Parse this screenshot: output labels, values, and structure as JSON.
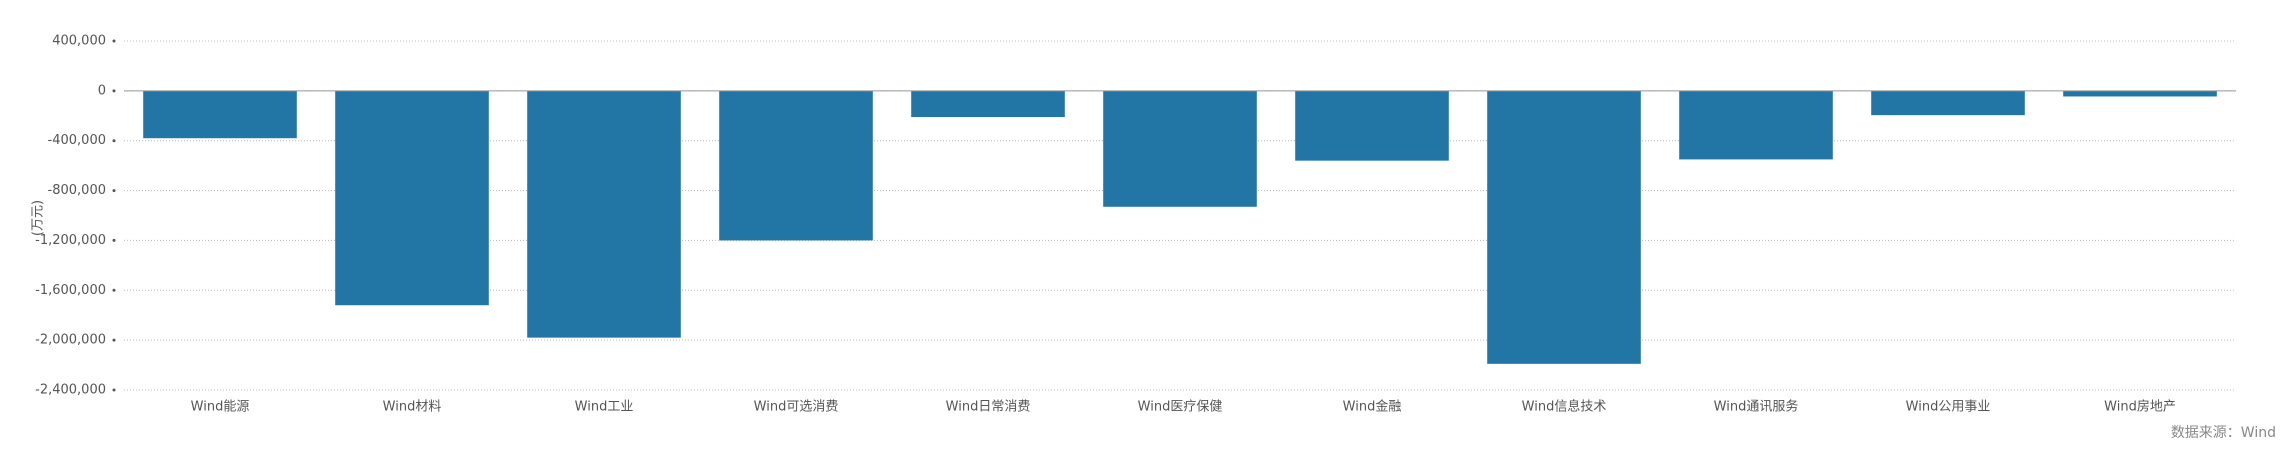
{
  "chart_data": {
    "type": "bar",
    "y_label": "(万元)",
    "source": "数据来源：Wind",
    "categories": [
      "Wind能源",
      "Wind材料",
      "Wind工业",
      "Wind可选消费",
      "Wind日常消费",
      "Wind医疗保健",
      "Wind金融",
      "Wind信息技术",
      "Wind通讯服务",
      "Wind公用事业",
      "Wind房地产"
    ],
    "values": [
      -380000,
      -1720000,
      -1980000,
      -1200000,
      -210000,
      -930000,
      -560000,
      -2190000,
      -550000,
      -195000,
      -45000
    ],
    "color": "#2176a5",
    "ylim": [
      -2400000,
      400000
    ],
    "yticks": [
      {
        "value": 400000,
        "label": "400,000"
      },
      0,
      {
        "value": -400000,
        "label": "-400,000"
      },
      {
        "value": -800000,
        "label": "-800,000"
      },
      {
        "value": -1200000,
        "label": "-1,200,000"
      },
      {
        "value": -1600000,
        "label": "-1,600,000"
      },
      {
        "value": -2000000,
        "label": "-2,000,000"
      },
      {
        "value": -2400000,
        "label": "-2,400,000"
      }
    ],
    "grid": true
  }
}
